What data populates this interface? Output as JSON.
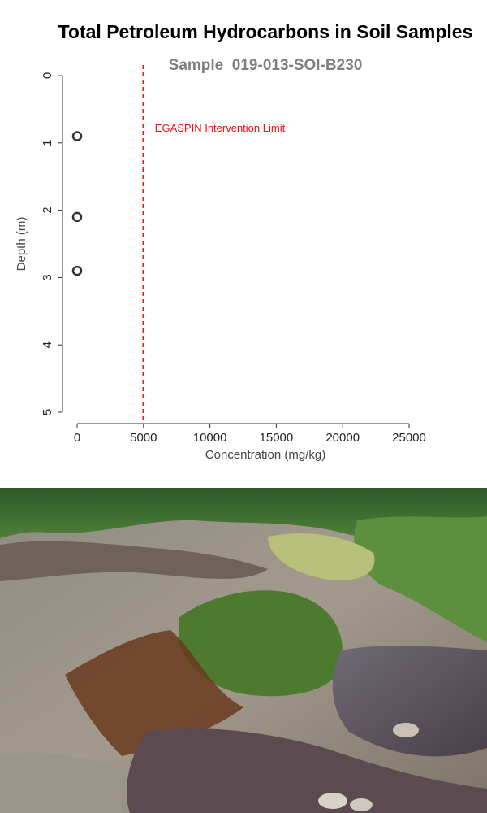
{
  "chart_data": {
    "type": "scatter",
    "title": "Total Petroleum Hydrocarbons in Soil Samples",
    "subtitle": "Sample  019-013-SOI-B230",
    "xlabel": "Concentration (mg/kg)",
    "ylabel": "Depth (m)",
    "xlim": [
      0,
      25000
    ],
    "ylim": [
      0,
      5
    ],
    "y_inverted": true,
    "x_ticks": [
      0,
      5000,
      10000,
      15000,
      20000,
      25000
    ],
    "x_tick_labels": [
      "0",
      "5000",
      "10000",
      "15000",
      "20000",
      "25000"
    ],
    "y_ticks": [
      0,
      1,
      2,
      3,
      4,
      5
    ],
    "y_tick_labels": [
      "0",
      "1",
      "2",
      "3",
      "4",
      "5"
    ],
    "grid": false,
    "points": [
      {
        "x": 0,
        "y": 0.9
      },
      {
        "x": 0,
        "y": 2.1
      },
      {
        "x": 0,
        "y": 2.9
      }
    ],
    "reference_line": {
      "x": 5000,
      "label": "EGASPIN Intervention Limit",
      "color": "#ee1111",
      "style": "dashed"
    },
    "colors": {
      "title": "#000000",
      "subtitle": "#808080",
      "axis_text": "#444444",
      "marker": "#333333"
    }
  },
  "photo": {
    "description_icon": "polluted-soil-photo"
  }
}
